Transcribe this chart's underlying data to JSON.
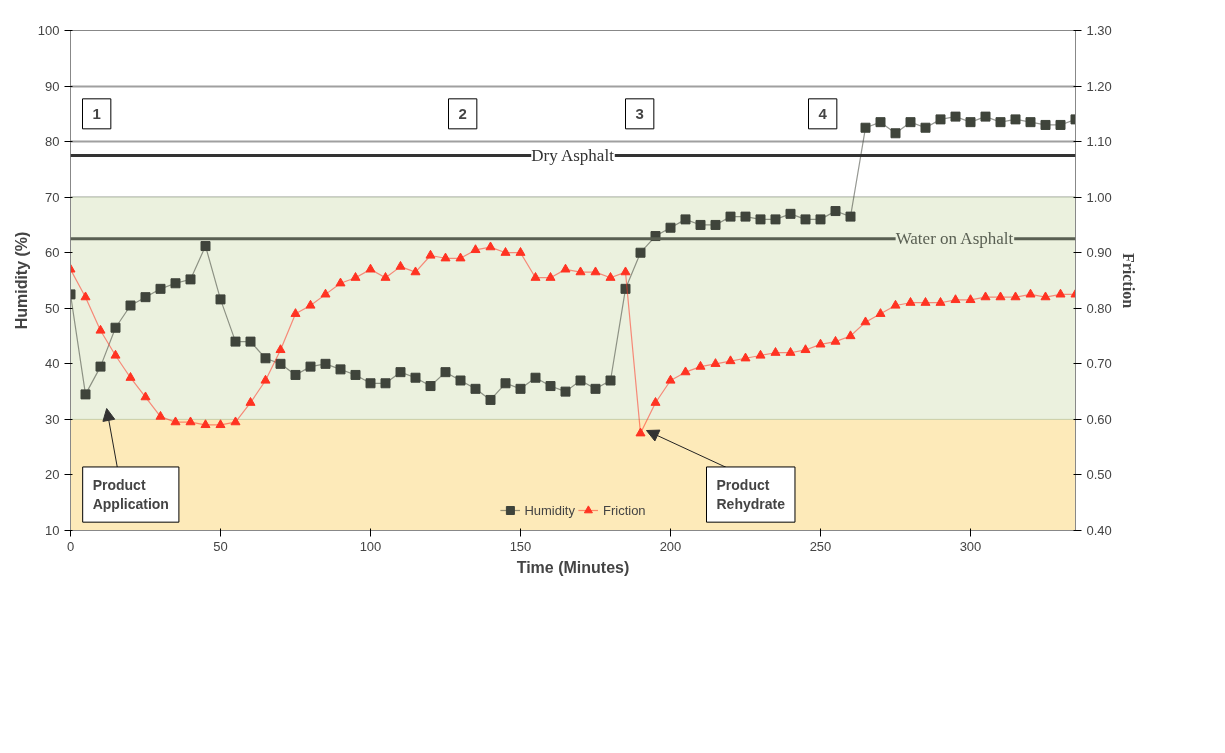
{
  "chart_data": {
    "type": "line",
    "xlabel": "Time (Minutes)",
    "ylabel": "Humidity (%)",
    "y2label": "Friction",
    "x": [
      0,
      5,
      10,
      15,
      20,
      25,
      30,
      35,
      40,
      45,
      50,
      55,
      60,
      65,
      70,
      75,
      80,
      85,
      90,
      95,
      100,
      105,
      110,
      115,
      120,
      125,
      130,
      135,
      140,
      145,
      150,
      155,
      160,
      165,
      170,
      175,
      180,
      185,
      190,
      195,
      200,
      205,
      210,
      215,
      220,
      225,
      230,
      235,
      240,
      245,
      250,
      255,
      260,
      265,
      270,
      275,
      280,
      285,
      290,
      295,
      300,
      305,
      310,
      315,
      320,
      325,
      330,
      335
    ],
    "series": [
      {
        "name": "Humidity",
        "color": "#3f443b",
        "marker": "square",
        "values": [
          52.5,
          34.5,
          39.5,
          46.5,
          50.5,
          52,
          53.5,
          54.5,
          55.2,
          61.2,
          51.6,
          44,
          44,
          41,
          40,
          38,
          39.5,
          40,
          39,
          38,
          36.5,
          36.5,
          38.5,
          37.5,
          36,
          38.5,
          37,
          35.5,
          33.5,
          36.5,
          35.5,
          37.5,
          36,
          35,
          37,
          35.5,
          37,
          53.5,
          60,
          63,
          64.5,
          66,
          65,
          65,
          66.5,
          66.5,
          66,
          66,
          67,
          66,
          66,
          67.5,
          66.5,
          82.5,
          83.5,
          81.5,
          83.5,
          82.5,
          84,
          84.5,
          83.5,
          84.5,
          83.5,
          84,
          83.5,
          83,
          83,
          84
        ]
      },
      {
        "name": "Friction",
        "color": "#ff3322",
        "marker": "triangle",
        "axis": "y2",
        "values": [
          0.87,
          0.82,
          0.76,
          0.715,
          0.675,
          0.64,
          0.605,
          0.595,
          0.595,
          0.59,
          0.59,
          0.595,
          0.63,
          0.67,
          0.725,
          0.79,
          0.805,
          0.825,
          0.845,
          0.855,
          0.87,
          0.855,
          0.875,
          0.865,
          0.895,
          0.89,
          0.89,
          0.905,
          0.91,
          0.9,
          0.9,
          0.855,
          0.855,
          0.87,
          0.865,
          0.865,
          0.855,
          0.865,
          0.575,
          0.63,
          0.67,
          0.685,
          0.695,
          0.7,
          0.705,
          0.71,
          0.715,
          0.72,
          0.72,
          0.725,
          0.735,
          0.74,
          0.75,
          0.775,
          0.79,
          0.805,
          0.81,
          0.81,
          0.81,
          0.815,
          0.815,
          0.82,
          0.82,
          0.82,
          0.825,
          0.82,
          0.825,
          0.825
        ]
      }
    ],
    "xlim": [
      0,
      335
    ],
    "xticks": [
      0,
      50,
      100,
      150,
      200,
      250,
      300
    ],
    "ylim": [
      10,
      100
    ],
    "yticks": [
      10,
      20,
      30,
      40,
      50,
      60,
      70,
      80,
      90,
      100
    ],
    "y2lim": [
      0.4,
      1.3
    ],
    "y2ticks": [
      {
        "value": 0.4,
        "label": "0.40"
      },
      {
        "value": 0.5,
        "label": "0.50"
      },
      {
        "value": 0.6,
        "label": "0.60"
      },
      {
        "value": 0.7,
        "label": "0.70"
      },
      {
        "value": 0.8,
        "label": "0.80"
      },
      {
        "value": 0.9,
        "label": "0.90"
      },
      {
        "value": 1.0,
        "label": "1.00"
      },
      {
        "value": 1.1,
        "label": "1.10"
      },
      {
        "value": 1.2,
        "label": "1.20"
      },
      {
        "value": 1.3,
        "label": "1.30"
      }
    ],
    "bands": [
      {
        "axis": "y",
        "from": 30,
        "to": 70,
        "color": "#ebf1de"
      },
      {
        "axis": "y",
        "from": 10,
        "to": 30,
        "color": "#fdeab9"
      }
    ],
    "ref_lines": [
      {
        "axis": "y2",
        "value": 1.075,
        "label": "Dry Asphalt",
        "color": "#333333"
      },
      {
        "axis": "y2",
        "value": 0.925,
        "label": "Water on Asphalt",
        "color": "#595f52"
      }
    ],
    "annotations": [
      "1",
      "2",
      "3",
      "4",
      "Product Application",
      {
        "text": "Product Rehydrate",
        "x": 192,
        "y": 28
      }
    ],
    "grid": "y",
    "legend": "bottom",
    "line_style": "solid"
  }
}
